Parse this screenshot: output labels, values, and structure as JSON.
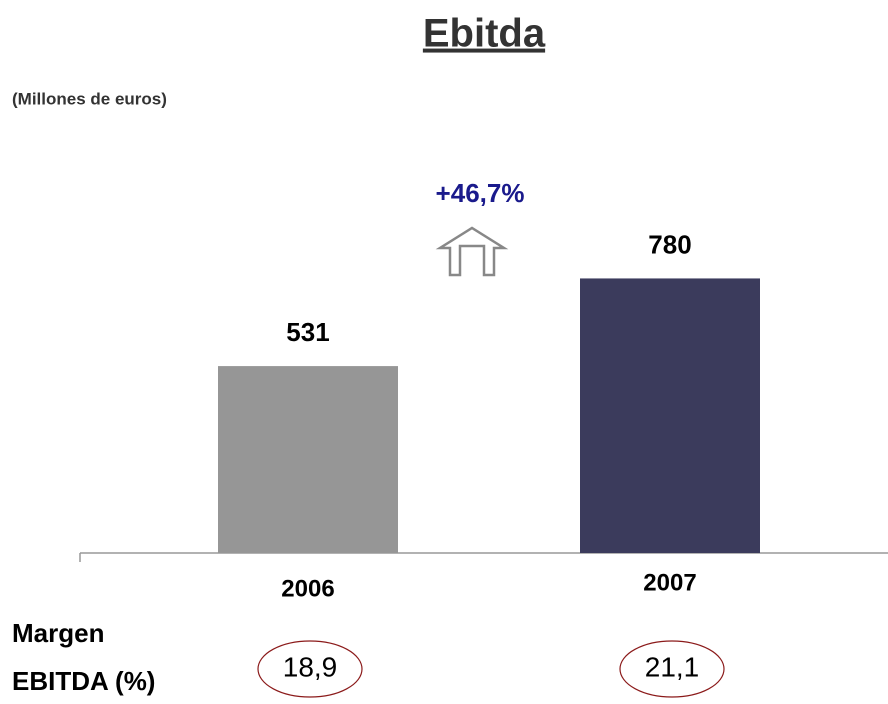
{
  "chart_data": {
    "type": "bar",
    "title": "Ebitda",
    "subtitle": "(Millones de euros)",
    "categories": [
      "2006",
      "2007"
    ],
    "values": [
      531,
      780
    ],
    "colors": [
      "#969696",
      "#3b3b5c"
    ],
    "annotation": "+46,7%",
    "margin_label": [
      "Margen",
      "EBITDA (%)"
    ],
    "margins": {
      "values": [
        18.9,
        21.1
      ],
      "value_labels": [
        "18,9",
        "21,1"
      ]
    }
  }
}
